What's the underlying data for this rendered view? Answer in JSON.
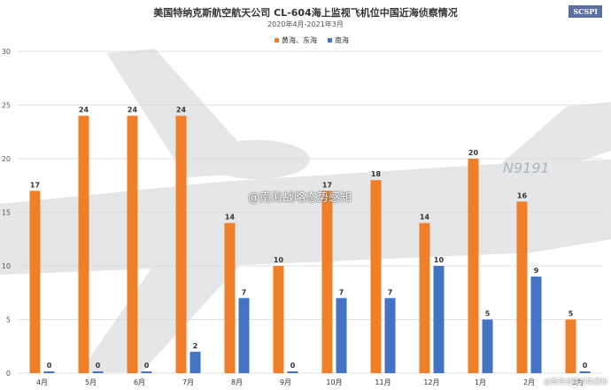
{
  "header": {
    "title": "美国特纳克斯航空航天公司 CL-604海上监视飞机位中国近海侦察情况",
    "subtitle": "2020年4月-2021年3月",
    "badge": "SCSPI"
  },
  "watermark": "@南海战略态势感知",
  "footer_tag": "@南海战略态势感知",
  "tail_number": "N9191",
  "colors": {
    "series_a": "#f07f2a",
    "series_b": "#4472c4",
    "grid": "#d9d9d9"
  },
  "chart_data": {
    "type": "bar",
    "title": "美国特纳克斯航空航天公司 CL-604海上监视飞机位中国近海侦察情况",
    "subtitle": "2020年4月-2021年3月",
    "categories": [
      "4月",
      "5月",
      "6月",
      "7月",
      "8月",
      "9月",
      "10月",
      "11月",
      "12月",
      "1月",
      "2月",
      "3月"
    ],
    "series": [
      {
        "name": "黄海、东海",
        "values": [
          17,
          24,
          24,
          24,
          14,
          10,
          17,
          18,
          14,
          20,
          16,
          5
        ]
      },
      {
        "name": "南海",
        "values": [
          0,
          0,
          0,
          2,
          7,
          0,
          7,
          7,
          10,
          5,
          9,
          0
        ]
      }
    ],
    "ylim": [
      0,
      30
    ],
    "yticks": [
      0,
      5,
      10,
      15,
      20,
      25,
      30
    ],
    "grid": true,
    "legend": "top-center"
  }
}
